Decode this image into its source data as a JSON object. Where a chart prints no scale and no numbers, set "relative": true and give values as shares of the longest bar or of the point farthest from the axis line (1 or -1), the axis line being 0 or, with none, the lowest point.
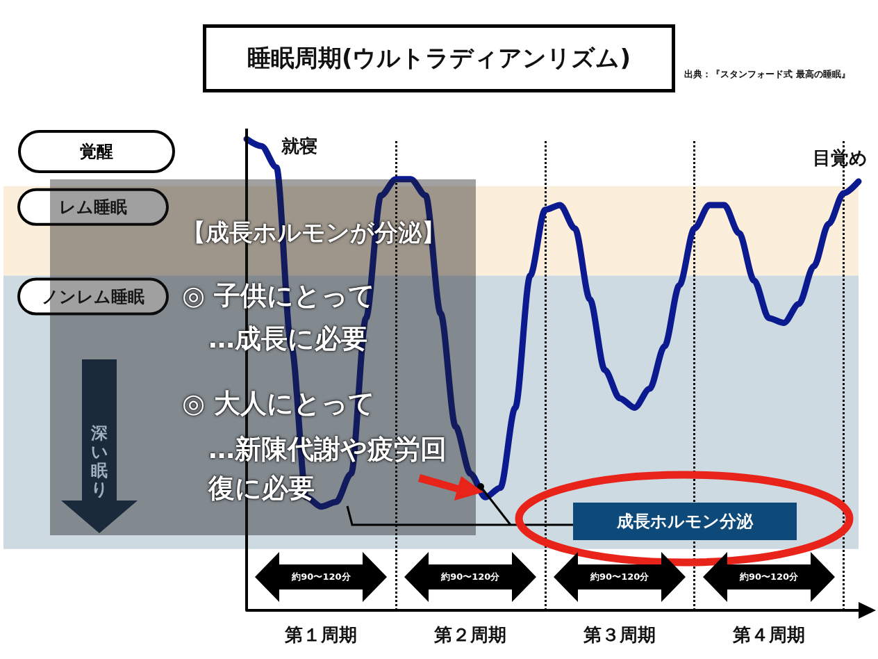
{
  "chart_data": {
    "type": "line",
    "title": "睡眠周期(ウルトラディアンリズム)",
    "relative": true,
    "categories": [
      null,
      null,
      null,
      null,
      null,
      "第１周期",
      null,
      null,
      null,
      null,
      null,
      null,
      null,
      null,
      null,
      "第２周期",
      null,
      null,
      null,
      null,
      null,
      null,
      null,
      null,
      null,
      "第３周期",
      null,
      null,
      null,
      null,
      null,
      null,
      null,
      null,
      null,
      "第４周期",
      null,
      null,
      null,
      null,
      null,
      null
    ],
    "series": [
      {
        "color": "#0b1a8e",
        "values": [
          1.0,
          0.985,
          0.94,
          0.56,
          0.24,
          0.22,
          0.23,
          0.29,
          0.62,
          0.88,
          0.915,
          0.915,
          0.88,
          0.63,
          0.39,
          0.29,
          0.24,
          0.26,
          0.43,
          0.71,
          0.85,
          0.86,
          0.81,
          0.66,
          0.51,
          0.45,
          0.43,
          0.47,
          0.56,
          0.69,
          0.81,
          0.86,
          0.86,
          0.8,
          0.7,
          0.62,
          0.61,
          0.65,
          0.73,
          0.82,
          0.885,
          0.91
        ]
      }
    ],
    "bands": [
      {
        "axis": "y",
        "from": 0.71,
        "to": 0.9,
        "label": "レム睡眠",
        "color": "#fbeedb"
      },
      {
        "axis": "y",
        "from": 0.13,
        "to": 0.71,
        "label": "ノンレム睡眠",
        "color": "#cddae2"
      }
    ],
    "annotations": [
      "出典：『スタンフォード式 最高の睡眠』",
      "就寝",
      "目覚め",
      "覚醒",
      "深い眠り",
      "約90〜120分",
      "約90〜120分",
      "約90〜120分",
      "約90〜120分",
      "【成長ホルモンが分泌】",
      "◎ 子供にとって",
      "…成長に必要",
      "◎ 大人にとって",
      "…新陳代謝や疲労回復に必要",
      "成長ホルモン分泌"
    ],
    "grid": "x",
    "line_style": "solid"
  }
}
